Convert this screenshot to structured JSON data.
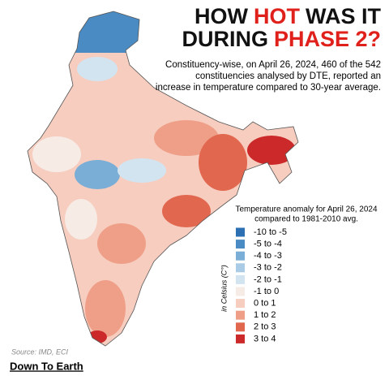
{
  "title": {
    "lines": [
      [
        {
          "text": "HOW",
          "highlight": false
        },
        {
          "text": "HOT",
          "highlight": true
        },
        {
          "text": "WAS IT",
          "highlight": false
        }
      ],
      [
        {
          "text": "DURING",
          "highlight": false
        },
        {
          "text": "PHASE 2?",
          "highlight": true
        }
      ]
    ],
    "color": "#111111",
    "highlight_color": "#e0201b"
  },
  "subtitle": [
    "Constituency-wise, on April 26, 2024, 460 of the 542",
    "constituencies analysed by DTE, reported an",
    "increase in temperature compared to 30-year average."
  ],
  "legend": {
    "title": [
      "Temperature anomaly for April 26, 2024",
      "compared to 1981-2010 avg."
    ],
    "unit": "in Celsius (C°)",
    "items": [
      {
        "label": "-10 to -5",
        "color": "#2c6fb3"
      },
      {
        "label": "-5 to -4",
        "color": "#4a8bc4"
      },
      {
        "label": "-4 to -3",
        "color": "#7aaed6"
      },
      {
        "label": "-3 to -2",
        "color": "#a9cbe6"
      },
      {
        "label": "-2 to -1",
        "color": "#d3e4f1"
      },
      {
        "label": "-1 to 0",
        "color": "#f7ebe6"
      },
      {
        "label": "0 to 1",
        "color": "#f6cdbf"
      },
      {
        "label": "1 to 2",
        "color": "#ef9f87"
      },
      {
        "label": "2 to 3",
        "color": "#e2674f"
      },
      {
        "label": "3 to 4",
        "color": "#cc2a2a"
      }
    ]
  },
  "source": "Source: IMD, ECI",
  "brand": "Down To Earth"
}
